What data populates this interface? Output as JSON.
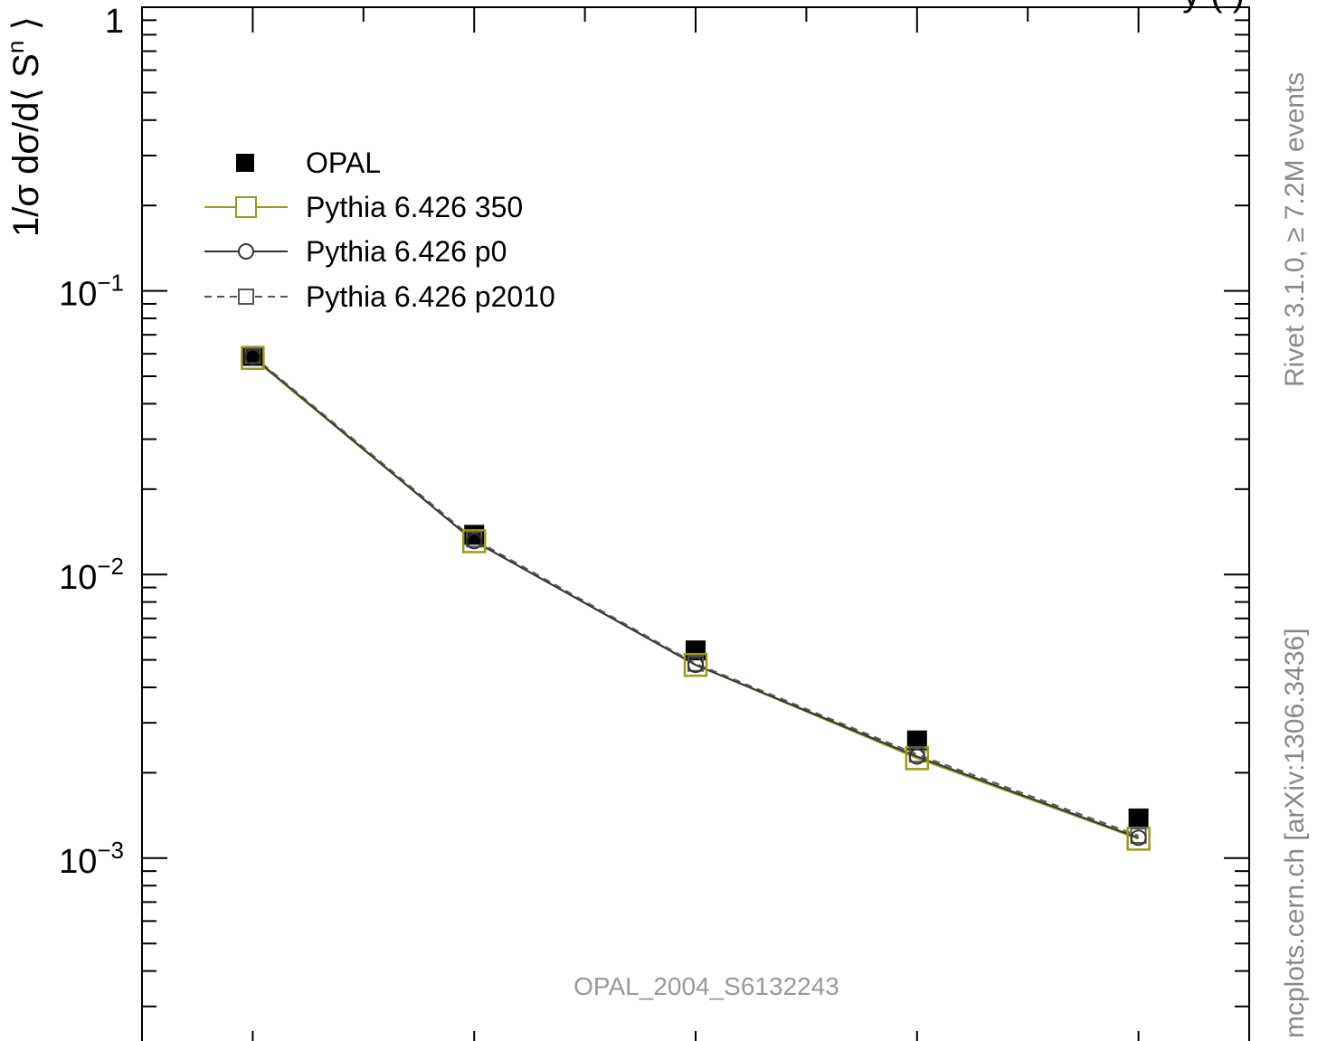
{
  "chart_data": {
    "type": "line",
    "title_fragment": "y (     )",
    "ylabel": "1/σ dσ/d⟨ S",
    "ylabel_sup": "n",
    "ylabel_close": " ⟩",
    "yscale": "log",
    "ylim": [
      0.0002,
      1
    ],
    "xlim": [
      0.5,
      5.5
    ],
    "x": [
      1,
      2,
      3,
      4,
      5
    ],
    "y_tick_labels": [
      {
        "value": 1,
        "base": "1",
        "exp": ""
      },
      {
        "value": 0.1,
        "base": "10",
        "exp": "−1"
      },
      {
        "value": 0.01,
        "base": "10",
        "exp": "−2"
      },
      {
        "value": 0.001,
        "base": "10",
        "exp": "−3"
      }
    ],
    "legend_position": "top-left",
    "series": [
      {
        "name": "OPAL",
        "kind": "data",
        "marker": "filled-square",
        "color": "#000000",
        "values": [
          0.059,
          0.0138,
          0.0054,
          0.0026,
          0.00138
        ]
      },
      {
        "name": "Pythia 6.426 350",
        "kind": "mc",
        "marker": "open-square",
        "line": "solid",
        "color": "#9a9a1c",
        "values": [
          0.058,
          0.0131,
          0.0048,
          0.00225,
          0.00117
        ]
      },
      {
        "name": "Pythia 6.426 p0",
        "kind": "mc",
        "marker": "open-circle",
        "line": "solid",
        "color": "#333333",
        "values": [
          0.0585,
          0.0131,
          0.0048,
          0.00228,
          0.00118
        ]
      },
      {
        "name": "Pythia 6.426 p2010",
        "kind": "mc",
        "marker": "open-square-small",
        "line": "dashed",
        "color": "#555555",
        "values": [
          0.059,
          0.0133,
          0.00485,
          0.00232,
          0.0012
        ]
      }
    ],
    "annotation": "OPAL_2004_S6132243",
    "side_label_top": "Rivet 3.1.0, ≥ 7.2M events",
    "side_label_bottom": "mcplots.cern.ch [arXiv:1306.3436]"
  }
}
